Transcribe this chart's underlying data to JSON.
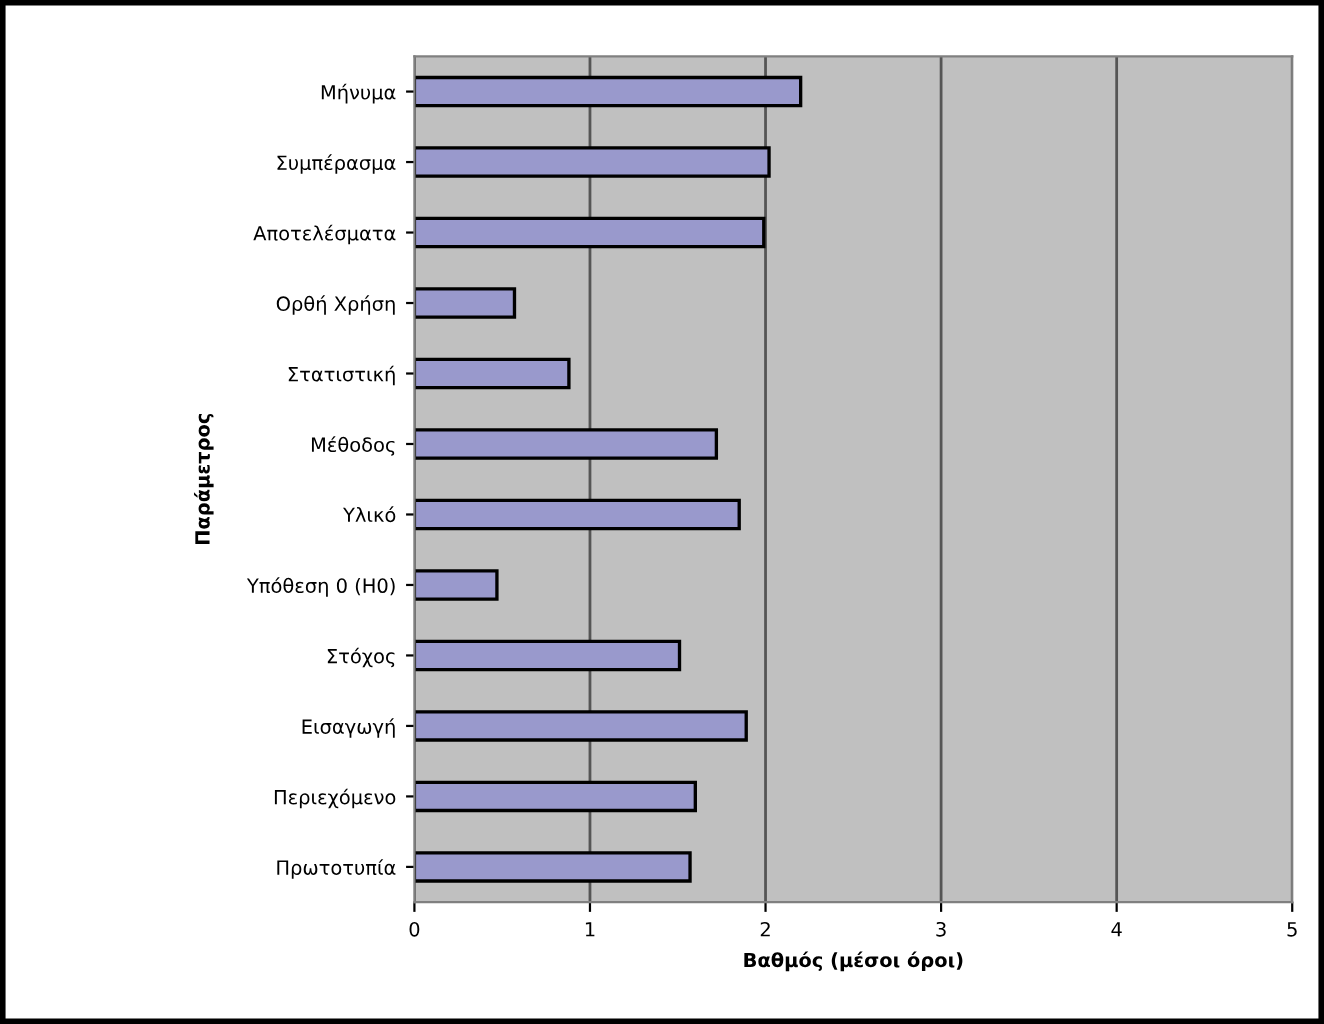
{
  "chart_data": {
    "type": "bar",
    "orientation": "horizontal",
    "categories": [
      "Μήνυμα",
      "Συμπέρασμα",
      "Αποτελέσματα",
      "Ορθή Χρήση",
      "Στατιστική",
      "Μέθοδος",
      "Υλικό",
      "Υπόθεση 0 (Η0)",
      "Στόχος",
      "Εισαγωγή",
      "Περιεχόμενο",
      "Πρωτοτυπία"
    ],
    "values": [
      2.2,
      2.02,
      1.99,
      0.57,
      0.88,
      1.72,
      1.85,
      0.47,
      1.51,
      1.89,
      1.6,
      1.57
    ],
    "color": "#9999cc",
    "xlabel": "Βαθμός (μέσοι όροι)",
    "ylabel": "Παράμετρος",
    "xlim": [
      0,
      5
    ],
    "xticks": [
      0,
      1,
      2,
      3,
      4,
      5
    ],
    "grid": "x",
    "legend": false
  }
}
